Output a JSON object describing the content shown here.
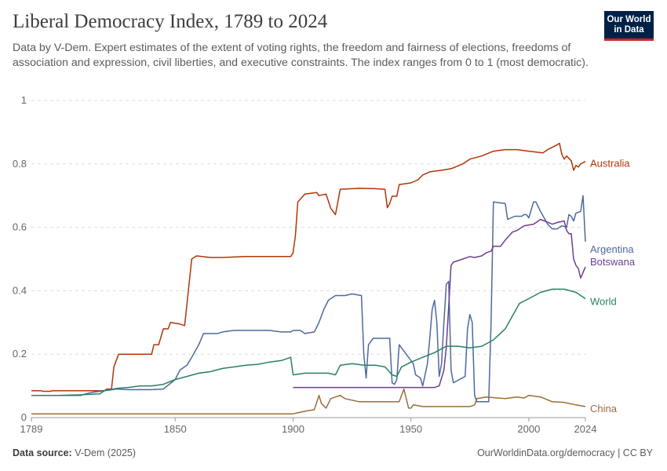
{
  "header": {
    "title": "Liberal Democracy Index, 1789 to 2024",
    "subtitle": "Data by V-Dem. Expert estimates of the extent of voting rights, the freedom and fairness of elections, freedoms of association and expression, civil liberties, and executive constraints. The index ranges from 0 to 1 (most democratic).",
    "logo_line1": "Our World",
    "logo_line2": "in Data"
  },
  "footer": {
    "source_label": "Data source:",
    "source_value": "V-Dem (2025)",
    "credit": "OurWorldinData.org/democracy | CC BY"
  },
  "colors": {
    "Australia": "#b13507",
    "Argentina": "#4c6a9c",
    "Botswana": "#6d3e91",
    "World": "#2a8062",
    "China": "#996d39",
    "grid": "#dddddd",
    "axis_text": "#666666"
  },
  "chart_data": {
    "type": "line",
    "title": "Liberal Democracy Index, 1789 to 2024",
    "xlabel": "",
    "ylabel": "",
    "xlim": [
      1789,
      2024
    ],
    "ylim": [
      0,
      1
    ],
    "x_ticks": [
      1789,
      1850,
      1900,
      1950,
      2000,
      2024
    ],
    "y_ticks": [
      0,
      0.2,
      0.4,
      0.6,
      0.8,
      1
    ],
    "y_tick_labels": [
      "0",
      "0.2",
      "0.4",
      "0.6",
      "0.8",
      "1"
    ],
    "grid": "horizontal dashed",
    "legend": "end-of-line labels at right",
    "series": [
      {
        "name": "Australia",
        "points": [
          [
            1789,
            0.085
          ],
          [
            1793,
            0.085
          ],
          [
            1794,
            0.083
          ],
          [
            1797,
            0.083
          ],
          [
            1798,
            0.085
          ],
          [
            1820,
            0.085
          ],
          [
            1821,
            0.09
          ],
          [
            1822,
            0.09
          ],
          [
            1823,
            0.09
          ],
          [
            1824,
            0.16
          ],
          [
            1826,
            0.2
          ],
          [
            1840,
            0.2
          ],
          [
            1841,
            0.23
          ],
          [
            1843,
            0.23
          ],
          [
            1845,
            0.28
          ],
          [
            1847,
            0.28
          ],
          [
            1848,
            0.3
          ],
          [
            1852,
            0.295
          ],
          [
            1854,
            0.29
          ],
          [
            1855,
            0.36
          ],
          [
            1856,
            0.43
          ],
          [
            1857,
            0.5
          ],
          [
            1859,
            0.51
          ],
          [
            1865,
            0.505
          ],
          [
            1870,
            0.505
          ],
          [
            1880,
            0.508
          ],
          [
            1890,
            0.508
          ],
          [
            1899,
            0.508
          ],
          [
            1900,
            0.52
          ],
          [
            1901,
            0.575
          ],
          [
            1902,
            0.68
          ],
          [
            1905,
            0.705
          ],
          [
            1910,
            0.71
          ],
          [
            1911,
            0.7
          ],
          [
            1914,
            0.705
          ],
          [
            1916,
            0.66
          ],
          [
            1918,
            0.64
          ],
          [
            1920,
            0.72
          ],
          [
            1928,
            0.723
          ],
          [
            1934,
            0.722
          ],
          [
            1939,
            0.72
          ],
          [
            1940,
            0.662
          ],
          [
            1941,
            0.675
          ],
          [
            1942,
            0.698
          ],
          [
            1944,
            0.698
          ],
          [
            1945,
            0.735
          ],
          [
            1950,
            0.74
          ],
          [
            1953,
            0.75
          ],
          [
            1955,
            0.765
          ],
          [
            1958,
            0.775
          ],
          [
            1963,
            0.78
          ],
          [
            1967,
            0.785
          ],
          [
            1972,
            0.8
          ],
          [
            1975,
            0.815
          ],
          [
            1980,
            0.825
          ],
          [
            1985,
            0.84
          ],
          [
            1990,
            0.845
          ],
          [
            1995,
            0.845
          ],
          [
            2000,
            0.84
          ],
          [
            2006,
            0.835
          ],
          [
            2008,
            0.845
          ],
          [
            2012,
            0.86
          ],
          [
            2013,
            0.865
          ],
          [
            2014,
            0.83
          ],
          [
            2015,
            0.815
          ],
          [
            2016,
            0.825
          ],
          [
            2018,
            0.81
          ],
          [
            2019,
            0.78
          ],
          [
            2020,
            0.795
          ],
          [
            2021,
            0.79
          ],
          [
            2022,
            0.8
          ],
          [
            2024,
            0.808
          ]
        ]
      },
      {
        "name": "Argentina",
        "points": [
          [
            1789,
            0.07
          ],
          [
            1810,
            0.07
          ],
          [
            1812,
            0.075
          ],
          [
            1815,
            0.08
          ],
          [
            1820,
            0.085
          ],
          [
            1825,
            0.09
          ],
          [
            1830,
            0.088
          ],
          [
            1840,
            0.088
          ],
          [
            1845,
            0.09
          ],
          [
            1850,
            0.12
          ],
          [
            1852,
            0.15
          ],
          [
            1855,
            0.165
          ],
          [
            1857,
            0.19
          ],
          [
            1860,
            0.23
          ],
          [
            1862,
            0.265
          ],
          [
            1868,
            0.265
          ],
          [
            1870,
            0.27
          ],
          [
            1875,
            0.275
          ],
          [
            1890,
            0.275
          ],
          [
            1895,
            0.27
          ],
          [
            1899,
            0.27
          ],
          [
            1900,
            0.275
          ],
          [
            1903,
            0.275
          ],
          [
            1905,
            0.265
          ],
          [
            1909,
            0.27
          ],
          [
            1911,
            0.3
          ],
          [
            1913,
            0.34
          ],
          [
            1915,
            0.37
          ],
          [
            1918,
            0.385
          ],
          [
            1922,
            0.385
          ],
          [
            1925,
            0.39
          ],
          [
            1929,
            0.385
          ],
          [
            1930,
            0.2
          ],
          [
            1931,
            0.125
          ],
          [
            1932,
            0.23
          ],
          [
            1934,
            0.25
          ],
          [
            1938,
            0.25
          ],
          [
            1941,
            0.25
          ],
          [
            1942,
            0.11
          ],
          [
            1943,
            0.105
          ],
          [
            1944,
            0.12
          ],
          [
            1945,
            0.23
          ],
          [
            1947,
            0.21
          ],
          [
            1948,
            0.2
          ],
          [
            1951,
            0.17
          ],
          [
            1952,
            0.135
          ],
          [
            1954,
            0.125
          ],
          [
            1955,
            0.1
          ],
          [
            1957,
            0.17
          ],
          [
            1958,
            0.25
          ],
          [
            1959,
            0.34
          ],
          [
            1960,
            0.37
          ],
          [
            1961,
            0.3
          ],
          [
            1962,
            0.13
          ],
          [
            1963,
            0.17
          ],
          [
            1964,
            0.3
          ],
          [
            1965,
            0.42
          ],
          [
            1966,
            0.43
          ],
          [
            1967,
            0.15
          ],
          [
            1968,
            0.11
          ],
          [
            1973,
            0.13
          ],
          [
            1974,
            0.28
          ],
          [
            1975,
            0.325
          ],
          [
            1976,
            0.3
          ],
          [
            1977,
            0.07
          ],
          [
            1978,
            0.05
          ],
          [
            1983,
            0.05
          ],
          [
            1984,
            0.3
          ],
          [
            1985,
            0.68
          ],
          [
            1990,
            0.675
          ],
          [
            1991,
            0.625
          ],
          [
            1994,
            0.635
          ],
          [
            1997,
            0.635
          ],
          [
            1998,
            0.64
          ],
          [
            1999,
            0.64
          ],
          [
            2000,
            0.63
          ],
          [
            2002,
            0.68
          ],
          [
            2003,
            0.68
          ],
          [
            2005,
            0.65
          ],
          [
            2008,
            0.61
          ],
          [
            2010,
            0.595
          ],
          [
            2012,
            0.595
          ],
          [
            2014,
            0.605
          ],
          [
            2016,
            0.6
          ],
          [
            2017,
            0.64
          ],
          [
            2018,
            0.635
          ],
          [
            2019,
            0.62
          ],
          [
            2020,
            0.645
          ],
          [
            2022,
            0.65
          ],
          [
            2023,
            0.7
          ],
          [
            2024,
            0.555
          ]
        ]
      },
      {
        "name": "Botswana",
        "points": [
          [
            1900,
            0.095
          ],
          [
            1935,
            0.095
          ],
          [
            1955,
            0.095
          ],
          [
            1960,
            0.095
          ],
          [
            1962,
            0.1
          ],
          [
            1964,
            0.15
          ],
          [
            1965,
            0.22
          ],
          [
            1966,
            0.35
          ],
          [
            1967,
            0.48
          ],
          [
            1968,
            0.49
          ],
          [
            1970,
            0.495
          ],
          [
            1975,
            0.508
          ],
          [
            1977,
            0.505
          ],
          [
            1980,
            0.51
          ],
          [
            1982,
            0.52
          ],
          [
            1984,
            0.525
          ],
          [
            1985,
            0.54
          ],
          [
            1988,
            0.54
          ],
          [
            1990,
            0.56
          ],
          [
            1993,
            0.585
          ],
          [
            1995,
            0.59
          ],
          [
            1998,
            0.605
          ],
          [
            2002,
            0.61
          ],
          [
            2005,
            0.625
          ],
          [
            2010,
            0.61
          ],
          [
            2012,
            0.615
          ],
          [
            2015,
            0.62
          ],
          [
            2016,
            0.59
          ],
          [
            2017,
            0.58
          ],
          [
            2018,
            0.58
          ],
          [
            2019,
            0.5
          ],
          [
            2020,
            0.48
          ],
          [
            2021,
            0.47
          ],
          [
            2022,
            0.44
          ],
          [
            2024,
            0.475
          ]
        ]
      },
      {
        "name": "World",
        "points": [
          [
            1789,
            0.07
          ],
          [
            1800,
            0.07
          ],
          [
            1810,
            0.072
          ],
          [
            1818,
            0.075
          ],
          [
            1820,
            0.085
          ],
          [
            1825,
            0.092
          ],
          [
            1830,
            0.095
          ],
          [
            1835,
            0.1
          ],
          [
            1840,
            0.1
          ],
          [
            1845,
            0.105
          ],
          [
            1850,
            0.12
          ],
          [
            1855,
            0.13
          ],
          [
            1860,
            0.14
          ],
          [
            1865,
            0.145
          ],
          [
            1870,
            0.155
          ],
          [
            1875,
            0.16
          ],
          [
            1880,
            0.165
          ],
          [
            1885,
            0.168
          ],
          [
            1890,
            0.175
          ],
          [
            1895,
            0.18
          ],
          [
            1899,
            0.19
          ],
          [
            1900,
            0.135
          ],
          [
            1905,
            0.14
          ],
          [
            1910,
            0.14
          ],
          [
            1915,
            0.14
          ],
          [
            1918,
            0.135
          ],
          [
            1920,
            0.165
          ],
          [
            1925,
            0.17
          ],
          [
            1930,
            0.165
          ],
          [
            1935,
            0.165
          ],
          [
            1939,
            0.16
          ],
          [
            1942,
            0.135
          ],
          [
            1944,
            0.13
          ],
          [
            1946,
            0.16
          ],
          [
            1950,
            0.175
          ],
          [
            1955,
            0.19
          ],
          [
            1960,
            0.205
          ],
          [
            1965,
            0.225
          ],
          [
            1970,
            0.225
          ],
          [
            1975,
            0.22
          ],
          [
            1980,
            0.225
          ],
          [
            1985,
            0.245
          ],
          [
            1990,
            0.28
          ],
          [
            1993,
            0.32
          ],
          [
            1996,
            0.36
          ],
          [
            2000,
            0.375
          ],
          [
            2005,
            0.395
          ],
          [
            2010,
            0.405
          ],
          [
            2015,
            0.405
          ],
          [
            2020,
            0.395
          ],
          [
            2024,
            0.375
          ]
        ]
      },
      {
        "name": "China",
        "points": [
          [
            1789,
            0.012
          ],
          [
            1800,
            0.012
          ],
          [
            1850,
            0.012
          ],
          [
            1900,
            0.012
          ],
          [
            1905,
            0.02
          ],
          [
            1909,
            0.025
          ],
          [
            1911,
            0.07
          ],
          [
            1912,
            0.045
          ],
          [
            1914,
            0.03
          ],
          [
            1916,
            0.06
          ],
          [
            1920,
            0.07
          ],
          [
            1922,
            0.06
          ],
          [
            1928,
            0.05
          ],
          [
            1935,
            0.05
          ],
          [
            1945,
            0.05
          ],
          [
            1947,
            0.09
          ],
          [
            1949,
            0.03
          ],
          [
            1950,
            0.03
          ],
          [
            1951,
            0.04
          ],
          [
            1955,
            0.035
          ],
          [
            1965,
            0.035
          ],
          [
            1975,
            0.035
          ],
          [
            1977,
            0.04
          ],
          [
            1978,
            0.06
          ],
          [
            1982,
            0.065
          ],
          [
            1990,
            0.06
          ],
          [
            1995,
            0.065
          ],
          [
            1998,
            0.062
          ],
          [
            2000,
            0.07
          ],
          [
            2005,
            0.065
          ],
          [
            2010,
            0.05
          ],
          [
            2015,
            0.048
          ],
          [
            2020,
            0.04
          ],
          [
            2024,
            0.035
          ]
        ]
      }
    ]
  }
}
